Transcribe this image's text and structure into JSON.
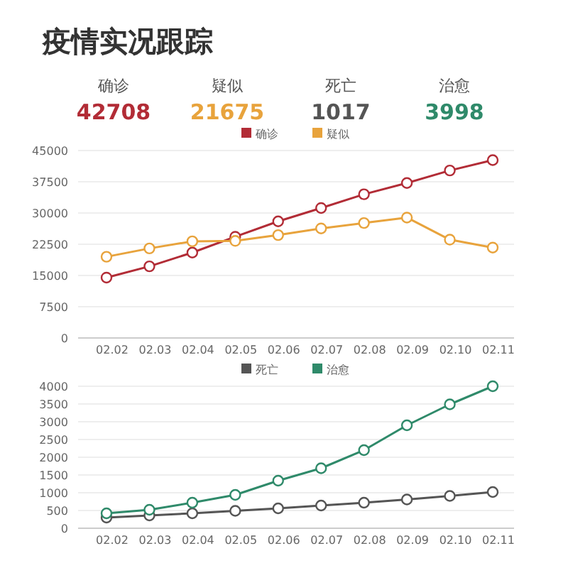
{
  "chart_data": [
    {
      "type": "other",
      "title": "疫情实况跟踪",
      "annotations": [
        "确诊",
        "42708",
        "疑似",
        "21675",
        "死亡",
        "1017",
        "治愈",
        "3998"
      ],
      "colors": [
        "#b22c36",
        "#e8a33c",
        "#555555",
        "#2f8a6a"
      ]
    },
    {
      "type": "line",
      "categories": [
        "02.02",
        "02.03",
        "02.04",
        "02.05",
        "02.06",
        "02.07",
        "02.08",
        "02.09",
        "02.10",
        "02.11"
      ],
      "series": [
        {
          "name": "确诊",
          "color": "#b22c36",
          "values": [
            14500,
            17200,
            20500,
            24300,
            28000,
            31200,
            34500,
            37200,
            40200,
            42700
          ]
        },
        {
          "name": "疑似",
          "color": "#e8a33c",
          "values": [
            19500,
            21500,
            23200,
            23300,
            24700,
            26300,
            27600,
            28900,
            23600,
            21700
          ]
        }
      ],
      "ylim": [
        0,
        45000
      ],
      "yticks": [
        0,
        7500,
        15000,
        22500,
        30000,
        37500,
        45000
      ],
      "grid": "y",
      "legend": "top",
      "marker": "circle"
    },
    {
      "type": "line",
      "categories": [
        "02.02",
        "02.03",
        "02.04",
        "02.05",
        "02.06",
        "02.07",
        "02.08",
        "02.09",
        "02.10",
        "02.11"
      ],
      "series": [
        {
          "name": "死亡",
          "color": "#555555",
          "values": [
            300,
            360,
            420,
            490,
            560,
            640,
            720,
            810,
            910,
            1020
          ]
        },
        {
          "name": "治愈",
          "color": "#2f8a6a",
          "values": [
            420,
            520,
            720,
            940,
            1340,
            1690,
            2200,
            2900,
            3490,
            4000
          ]
        }
      ],
      "ylim": [
        0,
        4000
      ],
      "yticks": [
        0,
        500,
        1000,
        1500,
        2000,
        2500,
        3000,
        3500,
        4000
      ],
      "grid": "y",
      "legend": "top",
      "marker": "circle"
    }
  ]
}
